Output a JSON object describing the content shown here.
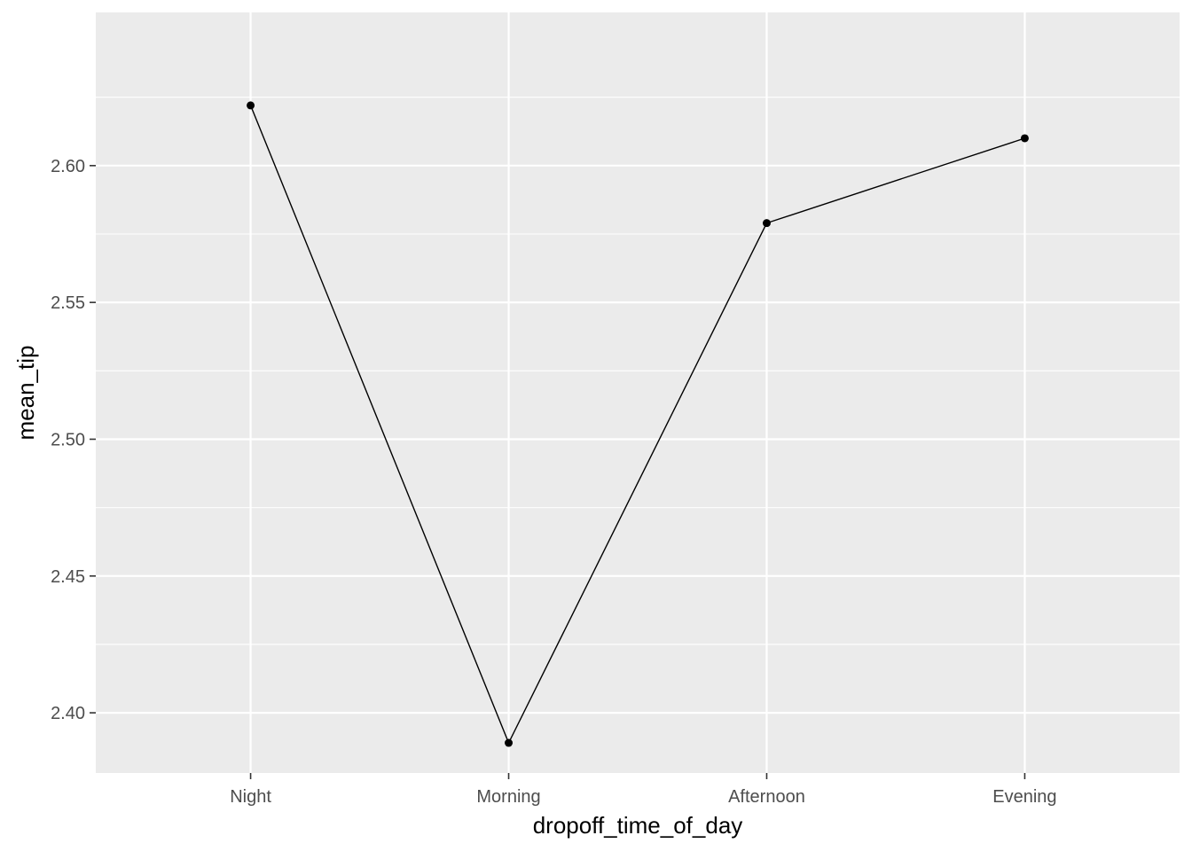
{
  "chart_data": {
    "type": "line",
    "xlabel": "dropoff_time_of_day",
    "ylabel": "mean_tip",
    "categories": [
      "Night",
      "Morning",
      "Afternoon",
      "Evening"
    ],
    "series": [
      {
        "values": [
          2.622,
          2.389,
          2.579,
          2.61
        ]
      }
    ],
    "ylim": [
      2.378,
      2.656
    ],
    "yticks": [
      2.4,
      2.45,
      2.5,
      2.55,
      2.6
    ],
    "ytick_labels": [
      "2.40",
      "2.45",
      "2.50",
      "2.55",
      "2.60"
    ],
    "grid": true,
    "colors": {
      "panel": "#EBEBEB",
      "grid": "#FFFFFF",
      "line": "#000000",
      "tick_text": "#4D4D4D"
    }
  }
}
